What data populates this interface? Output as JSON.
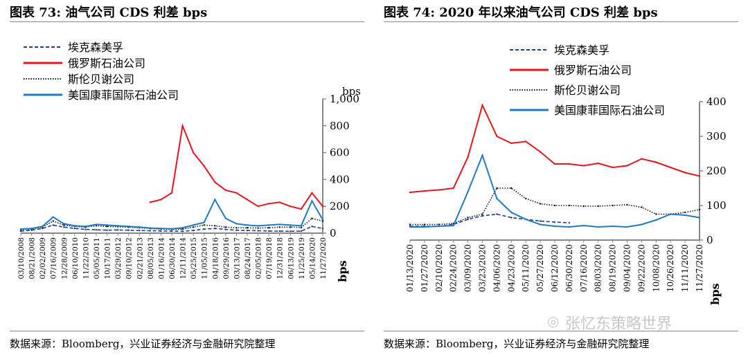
{
  "charts": [
    {
      "title": "图表 73:  油气公司 CDS 利差   bps",
      "source": "数据来源：Bloomberg，兴业证券经济与金融研究院整理"
    },
    {
      "title": "图表 74:  2020 年以来油气公司 CDS 利差   bps",
      "source": "数据来源：Bloomberg，兴业证券经济与金融研究院整理"
    }
  ],
  "watermark": "张忆东策略世界",
  "chart_data": [
    {
      "type": "line",
      "title": "油气公司 CDS 利差",
      "ylabel": "bps",
      "y2_unit": "bps",
      "ylim": [
        0,
        1000
      ],
      "yticks": [
        "0",
        "200",
        "400",
        "600",
        "800",
        "1,000"
      ],
      "x_ticks": [
        "03/10/2008",
        "08/21/2008",
        "02/02/2009",
        "07/16/2009",
        "12/28/2009",
        "06/10/2010",
        "11/22/2010",
        "05/05/2011",
        "10/17/2011",
        "03/29/2012",
        "09/10/2012",
        "02/21/2013",
        "08/05/2013",
        "01/16/2014",
        "06/30/2014",
        "12/11/2014",
        "05/25/2015",
        "11/05/2015",
        "04/18/2016",
        "09/29/2016",
        "03/13/2017",
        "08/24/2017",
        "02/05/2018",
        "07/19/2018",
        "12/31/2018",
        "06/13/2019",
        "11/25/2019",
        "05/14/2020",
        "11/27/2020"
      ],
      "legend_position": "top-left",
      "series": [
        {
          "name": "埃克森美孚",
          "color": "#1f3a93",
          "style": "dashed",
          "values": [
            15,
            22,
            35,
            60,
            45,
            35,
            28,
            25,
            22,
            24,
            22,
            20,
            18,
            16,
            15,
            14,
            20,
            30,
            35,
            28,
            22,
            20,
            18,
            16,
            15,
            14,
            15,
            50,
            35
          ]
        },
        {
          "name": "俄罗斯石油公司",
          "color": "#e8141c",
          "style": "solid",
          "values": [
            null,
            null,
            null,
            null,
            null,
            null,
            null,
            null,
            null,
            null,
            null,
            null,
            230,
            250,
            300,
            800,
            600,
            500,
            380,
            320,
            300,
            250,
            200,
            220,
            230,
            200,
            180,
            300,
            200
          ]
        },
        {
          "name": "斯伦贝谢公司",
          "color": "#111111",
          "style": "dotted",
          "values": [
            25,
            30,
            45,
            90,
            60,
            50,
            45,
            55,
            50,
            48,
            45,
            40,
            35,
            30,
            28,
            30,
            45,
            60,
            55,
            45,
            40,
            40,
            38,
            40,
            45,
            45,
            42,
            110,
            90
          ]
        },
        {
          "name": "美国康菲国际石油公司",
          "color": "#1f7ac2",
          "style": "solid",
          "values": [
            30,
            35,
            50,
            120,
            70,
            55,
            50,
            65,
            60,
            55,
            50,
            45,
            38,
            35,
            32,
            40,
            60,
            80,
            250,
            110,
            70,
            60,
            55,
            60,
            65,
            60,
            55,
            240,
            100
          ]
        }
      ]
    },
    {
      "type": "line",
      "title": "2020 年以来油气公司 CDS 利差",
      "ylabel": "bps",
      "ylim": [
        0,
        400
      ],
      "yticks": [
        "0",
        "100",
        "200",
        "300",
        "400"
      ],
      "x_ticks": [
        "01/13/2020",
        "01/27/2020",
        "02/10/2020",
        "02/24/2020",
        "03/09/2020",
        "03/23/2020",
        "04/06/2020",
        "04/23/2020",
        "05/11/2020",
        "05/27/2020",
        "06/12/2020",
        "06/30/2020",
        "07/16/2020",
        "08/03/2020",
        "08/19/2020",
        "09/04/2020",
        "09/22/2020",
        "10/08/2020",
        "10/26/2020",
        "11/11/2020",
        "11/27/2020"
      ],
      "legend_position": "top-left",
      "series": [
        {
          "name": "埃克森美孚",
          "color": "#1f3a93",
          "style": "dashed",
          "values": [
            40,
            40,
            40,
            45,
            60,
            70,
            75,
            65,
            60,
            55,
            52,
            50,
            null,
            null,
            null,
            null,
            null,
            null,
            null,
            null,
            null
          ]
        },
        {
          "name": "俄罗斯石油公司",
          "color": "#e8141c",
          "style": "solid",
          "values": [
            138,
            142,
            145,
            150,
            240,
            390,
            300,
            280,
            285,
            255,
            220,
            220,
            215,
            222,
            210,
            215,
            235,
            225,
            210,
            195,
            185
          ]
        },
        {
          "name": "斯伦贝谢公司",
          "color": "#111111",
          "style": "dotted",
          "values": [
            45,
            45,
            45,
            48,
            65,
            75,
            150,
            150,
            120,
            105,
            100,
            100,
            98,
            98,
            100,
            102,
            95,
            75,
            75,
            80,
            88
          ]
        },
        {
          "name": "美国康菲国际石油公司",
          "color": "#1f7ac2",
          "style": "solid",
          "values": [
            38,
            38,
            40,
            42,
            140,
            245,
            120,
            80,
            60,
            45,
            40,
            38,
            42,
            38,
            40,
            38,
            45,
            58,
            75,
            72,
            65
          ]
        }
      ]
    }
  ]
}
